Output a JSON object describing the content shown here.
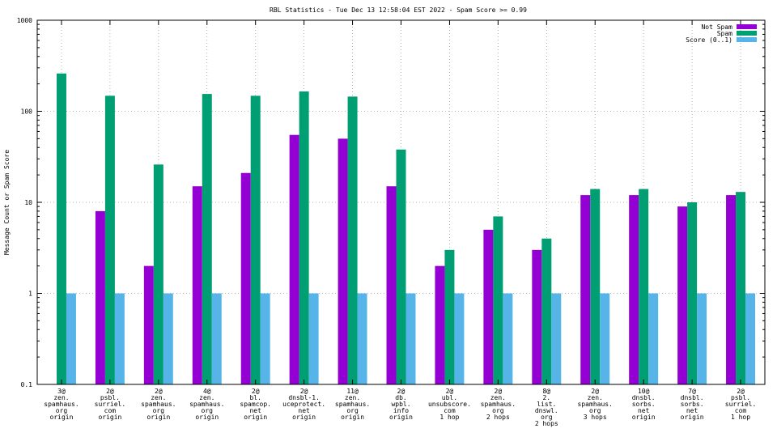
{
  "chart_data": {
    "type": "bar",
    "title": "RBL Statistics - Tue Dec 13 12:58:04 EST 2022 - Spam Score >= 0.99",
    "xlabel": "",
    "ylabel": "Message Count or Spam Score",
    "yscale": "log",
    "ylim": [
      0.1,
      1000
    ],
    "yticks": [
      "0.1",
      "1",
      "10",
      "100",
      "1000"
    ],
    "grid": true,
    "legend_position": "top-right",
    "categories": [
      [
        "3@",
        "zen.",
        "spamhaus.",
        "org",
        "origin"
      ],
      [
        "2@",
        "psbl.",
        "surriel.",
        "com",
        "origin"
      ],
      [
        "2@",
        "zen.",
        "spamhaus.",
        "org",
        "origin"
      ],
      [
        "4@",
        "zen.",
        "spamhaus.",
        "org",
        "origin"
      ],
      [
        "2@",
        "bl.",
        "spamcop.",
        "net",
        "origin"
      ],
      [
        "2@",
        "dnsbl-1.",
        "uceprotect.",
        "net",
        "origin"
      ],
      [
        "11@",
        "zen.",
        "spamhaus.",
        "org",
        "origin"
      ],
      [
        "2@",
        "db.",
        "wpbl.",
        "info",
        "origin"
      ],
      [
        "2@",
        "ubl.",
        "unsubscore.",
        "com",
        "1 hop"
      ],
      [
        "2@",
        "zen.",
        "spamhaus.",
        "org",
        "2 hops"
      ],
      [
        "8@",
        "2.",
        "list.",
        "dnswl.",
        "org",
        "2 hops"
      ],
      [
        "2@",
        "zen.",
        "spamhaus.",
        "org",
        "3 hops"
      ],
      [
        "10@",
        "dnsbl.",
        "sorbs.",
        "net",
        "origin"
      ],
      [
        "7@",
        "dnsbl.",
        "sorbs.",
        "net",
        "origin"
      ],
      [
        "2@",
        "psbl.",
        "surriel.",
        "com",
        "1 hop"
      ]
    ],
    "series": [
      {
        "name": "Not Spam",
        "color": "#9400d3",
        "values": [
          0,
          8,
          2,
          15,
          21,
          55,
          50,
          15,
          2,
          5,
          3,
          12,
          12,
          9,
          12
        ]
      },
      {
        "name": "Spam",
        "color": "#009e73",
        "values": [
          260,
          148,
          26,
          155,
          148,
          165,
          145,
          38,
          3,
          7,
          4,
          14,
          14,
          10,
          13
        ]
      },
      {
        "name": "Score (0..1)",
        "color": "#56b4e9",
        "values": [
          1,
          1,
          1,
          1,
          1,
          1,
          1,
          1,
          1,
          1,
          1,
          1,
          1,
          1,
          1
        ]
      }
    ]
  }
}
